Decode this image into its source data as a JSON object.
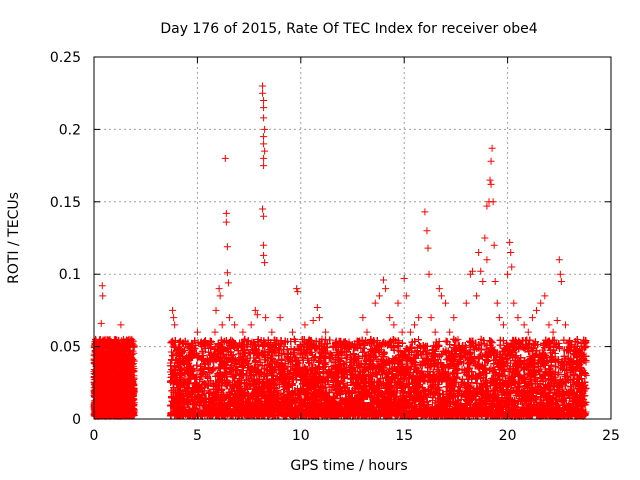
{
  "chart_data": {
    "type": "scatter",
    "title": "Day 176 of 2015, Rate Of TEC Index for receiver obe4",
    "xlabel": "GPS time / hours",
    "ylabel": "ROTI / TECUs",
    "xlim": [
      0,
      25
    ],
    "ylim": [
      0,
      0.25
    ],
    "x_ticks": [
      "0",
      "5",
      "10",
      "15",
      "20",
      "25"
    ],
    "y_ticks": [
      "0",
      "0.05",
      "0.1",
      "0.15",
      "0.2",
      "0.25"
    ],
    "grid": true,
    "marker": "+",
    "series_color": "#ff0000",
    "series": [
      {
        "values": [
          [
            0.1,
            0.02
          ],
          [
            0.25,
            0.035
          ],
          [
            0.3,
            0.05
          ],
          [
            0.35,
            0.066
          ],
          [
            0.4,
            0.092
          ],
          [
            0.42,
            0.085
          ],
          [
            0.5,
            0.045
          ],
          [
            0.6,
            0.03
          ],
          [
            0.7,
            0.04
          ],
          [
            0.8,
            0.025
          ],
          [
            0.9,
            0.035
          ],
          [
            1.0,
            0.05
          ],
          [
            1.1,
            0.03
          ],
          [
            1.2,
            0.04
          ],
          [
            1.3,
            0.065
          ],
          [
            1.4,
            0.03
          ],
          [
            1.5,
            0.045
          ],
          [
            1.6,
            0.03
          ],
          [
            1.7,
            0.055
          ],
          [
            1.8,
            0.04
          ],
          [
            1.9,
            0.02
          ],
          [
            3.8,
            0.075
          ],
          [
            3.85,
            0.07
          ],
          [
            3.9,
            0.065
          ],
          [
            4.0,
            0.045
          ],
          [
            4.2,
            0.03
          ],
          [
            4.4,
            0.04
          ],
          [
            4.6,
            0.05
          ],
          [
            4.8,
            0.035
          ],
          [
            5.0,
            0.06
          ],
          [
            5.2,
            0.05
          ],
          [
            5.4,
            0.04
          ],
          [
            5.6,
            0.035
          ],
          [
            5.8,
            0.045
          ],
          [
            5.85,
            0.06
          ],
          [
            5.9,
            0.075
          ],
          [
            6.0,
            0.05
          ],
          [
            6.05,
            0.09
          ],
          [
            6.1,
            0.085
          ],
          [
            6.2,
            0.065
          ],
          [
            6.35,
            0.18
          ],
          [
            6.4,
            0.142
          ],
          [
            6.4,
            0.136
          ],
          [
            6.45,
            0.119
          ],
          [
            6.45,
            0.101
          ],
          [
            6.5,
            0.094
          ],
          [
            6.55,
            0.07
          ],
          [
            6.6,
            0.05
          ],
          [
            6.8,
            0.065
          ],
          [
            7.0,
            0.045
          ],
          [
            7.2,
            0.06
          ],
          [
            7.4,
            0.05
          ],
          [
            7.6,
            0.065
          ],
          [
            7.8,
            0.075
          ],
          [
            7.9,
            0.072
          ],
          [
            8.15,
            0.23
          ],
          [
            8.15,
            0.225
          ],
          [
            8.2,
            0.22
          ],
          [
            8.2,
            0.215
          ],
          [
            8.2,
            0.208
          ],
          [
            8.25,
            0.2
          ],
          [
            8.2,
            0.195
          ],
          [
            8.2,
            0.19
          ],
          [
            8.25,
            0.185
          ],
          [
            8.2,
            0.18
          ],
          [
            8.2,
            0.175
          ],
          [
            8.15,
            0.145
          ],
          [
            8.2,
            0.14
          ],
          [
            8.2,
            0.12
          ],
          [
            8.2,
            0.113
          ],
          [
            8.25,
            0.108
          ],
          [
            8.3,
            0.07
          ],
          [
            8.4,
            0.05
          ],
          [
            8.6,
            0.06
          ],
          [
            8.8,
            0.045
          ],
          [
            9.0,
            0.07
          ],
          [
            9.2,
            0.05
          ],
          [
            9.4,
            0.04
          ],
          [
            9.6,
            0.06
          ],
          [
            9.8,
            0.09
          ],
          [
            9.85,
            0.088
          ],
          [
            10.0,
            0.05
          ],
          [
            10.2,
            0.065
          ],
          [
            10.4,
            0.055
          ],
          [
            10.6,
            0.068
          ],
          [
            10.8,
            0.077
          ],
          [
            10.9,
            0.07
          ],
          [
            11.0,
            0.045
          ],
          [
            11.2,
            0.06
          ],
          [
            11.5,
            0.04
          ],
          [
            11.8,
            0.05
          ],
          [
            12.0,
            0.035
          ],
          [
            12.3,
            0.048
          ],
          [
            12.6,
            0.052
          ],
          [
            12.8,
            0.04
          ],
          [
            13.0,
            0.07
          ],
          [
            13.2,
            0.06
          ],
          [
            13.4,
            0.055
          ],
          [
            13.6,
            0.08
          ],
          [
            13.8,
            0.085
          ],
          [
            14.0,
            0.096
          ],
          [
            14.1,
            0.09
          ],
          [
            14.3,
            0.07
          ],
          [
            14.5,
            0.065
          ],
          [
            14.7,
            0.08
          ],
          [
            14.9,
            0.06
          ],
          [
            15.0,
            0.097
          ],
          [
            15.1,
            0.085
          ],
          [
            15.3,
            0.06
          ],
          [
            15.5,
            0.065
          ],
          [
            15.7,
            0.07
          ],
          [
            15.8,
            0.045
          ],
          [
            16.0,
            0.143
          ],
          [
            16.1,
            0.13
          ],
          [
            16.15,
            0.118
          ],
          [
            16.2,
            0.1
          ],
          [
            16.3,
            0.07
          ],
          [
            16.5,
            0.06
          ],
          [
            16.7,
            0.09
          ],
          [
            16.8,
            0.085
          ],
          [
            17.0,
            0.08
          ],
          [
            17.2,
            0.06
          ],
          [
            17.4,
            0.07
          ],
          [
            17.6,
            0.055
          ],
          [
            17.8,
            0.05
          ],
          [
            18.0,
            0.08
          ],
          [
            18.2,
            0.1
          ],
          [
            18.3,
            0.102
          ],
          [
            18.5,
            0.085
          ],
          [
            18.6,
            0.115
          ],
          [
            18.7,
            0.102
          ],
          [
            18.8,
            0.095
          ],
          [
            18.9,
            0.125
          ],
          [
            19.0,
            0.11
          ],
          [
            19.0,
            0.147
          ],
          [
            19.1,
            0.15
          ],
          [
            19.15,
            0.165
          ],
          [
            19.2,
            0.162
          ],
          [
            19.2,
            0.178
          ],
          [
            19.25,
            0.187
          ],
          [
            19.3,
            0.15
          ],
          [
            19.35,
            0.12
          ],
          [
            19.4,
            0.095
          ],
          [
            19.5,
            0.08
          ],
          [
            19.6,
            0.07
          ],
          [
            19.8,
            0.065
          ],
          [
            20.0,
            0.1
          ],
          [
            20.1,
            0.122
          ],
          [
            20.15,
            0.115
          ],
          [
            20.2,
            0.105
          ],
          [
            20.3,
            0.08
          ],
          [
            20.5,
            0.07
          ],
          [
            20.8,
            0.065
          ],
          [
            21.0,
            0.06
          ],
          [
            21.2,
            0.07
          ],
          [
            21.4,
            0.075
          ],
          [
            21.6,
            0.08
          ],
          [
            21.8,
            0.085
          ],
          [
            22.0,
            0.065
          ],
          [
            22.2,
            0.06
          ],
          [
            22.4,
            0.068
          ],
          [
            22.5,
            0.11
          ],
          [
            22.55,
            0.1
          ],
          [
            22.6,
            0.095
          ],
          [
            22.8,
            0.065
          ],
          [
            23.0,
            0.05
          ],
          [
            23.2,
            0.045
          ],
          [
            23.5,
            0.035
          ],
          [
            23.8,
            0.03
          ]
        ]
      }
    ],
    "dense_band": {
      "segments": [
        [
          0,
          1.95
        ],
        [
          3.7,
          23.8
        ]
      ],
      "base_range": [
        0.002,
        0.055
      ],
      "points_per_hour": 1200
    }
  }
}
